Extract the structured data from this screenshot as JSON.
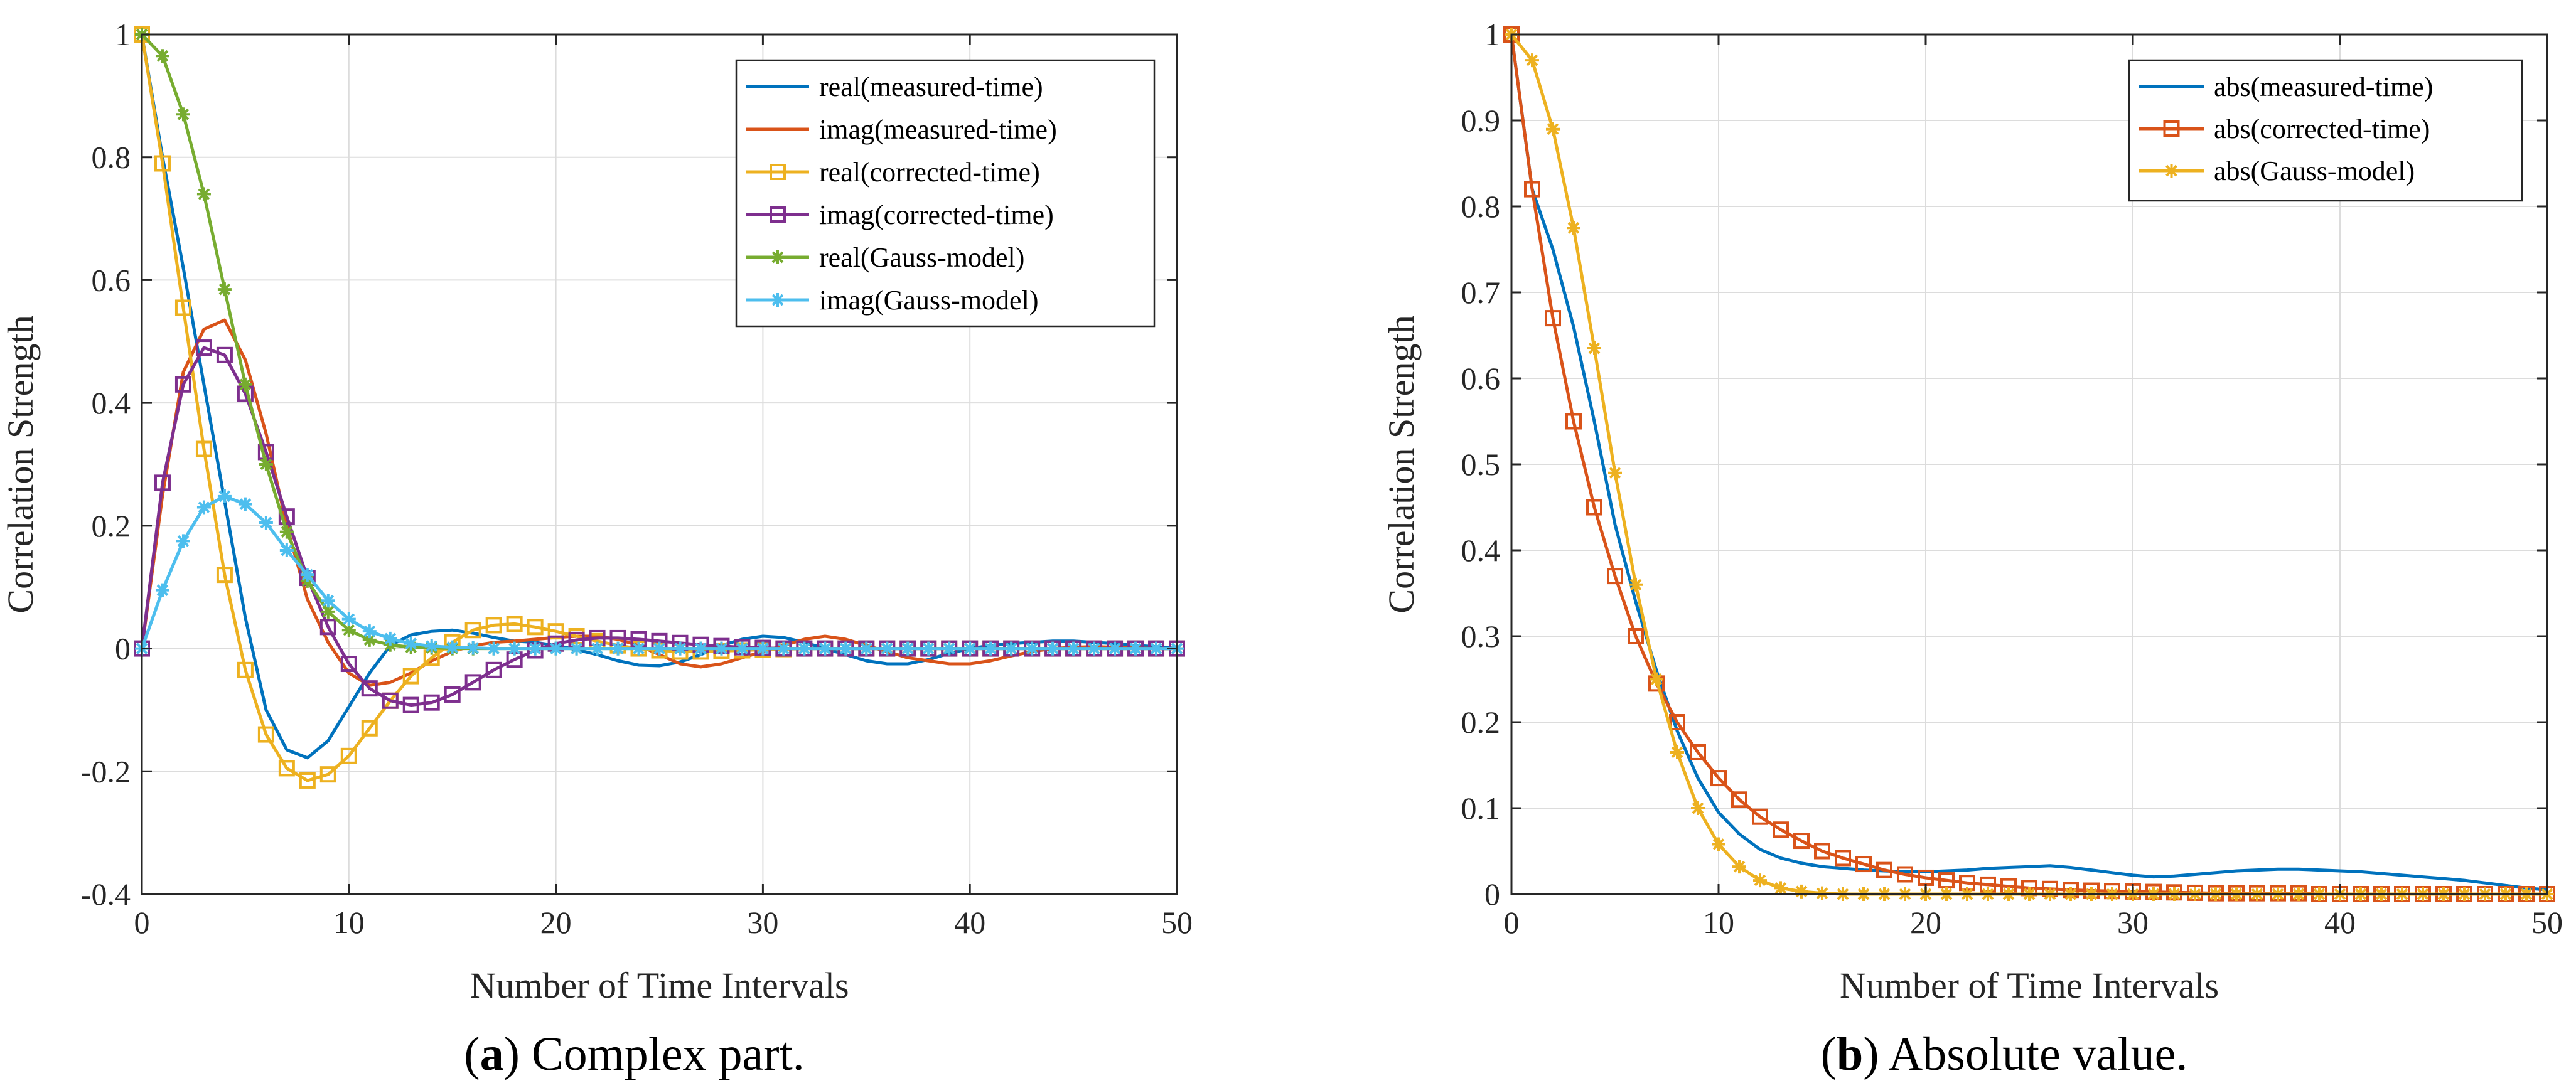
{
  "chart_data": [
    {
      "type": "line",
      "caption": {
        "open": "(",
        "letter": "a",
        "rest": ") Complex part."
      },
      "xlabel": "Number of Time Intervals",
      "ylabel": "Correlation Strength",
      "xlim": [
        0,
        50
      ],
      "ylim": [
        -0.4,
        1
      ],
      "grid": true,
      "legend_position": "top-right",
      "xticks": [
        0,
        10,
        20,
        30,
        40,
        50
      ],
      "yticks": [
        -0.4,
        -0.2,
        0,
        0.2,
        0.4,
        0.6,
        0.8,
        1
      ],
      "ytick_labels": [
        "-0.4",
        "-0.2",
        "0",
        "0.2",
        "0.4",
        "0.6",
        "0.8",
        "1"
      ],
      "series": [
        {
          "name": "real(measured-time)",
          "color": "#0072BD",
          "marker": "none",
          "x": [
            0,
            1,
            2,
            3,
            4,
            5,
            6,
            7,
            8,
            9,
            10,
            11,
            12,
            13,
            14,
            15,
            16,
            17,
            18,
            19,
            20,
            21,
            22,
            23,
            24,
            25,
            26,
            27,
            28,
            29,
            30,
            31,
            32,
            33,
            34,
            35,
            36,
            37,
            38,
            39,
            40,
            41,
            42,
            43,
            44,
            45,
            46,
            47,
            48,
            49,
            50
          ],
          "values": [
            1,
            0.8,
            0.62,
            0.43,
            0.24,
            0.05,
            -0.1,
            -0.165,
            -0.178,
            -0.15,
            -0.095,
            -0.04,
            0.005,
            0.022,
            0.028,
            0.03,
            0.025,
            0.018,
            0.012,
            0.01,
            0.005,
            -0.002,
            -0.01,
            -0.02,
            -0.027,
            -0.028,
            -0.022,
            -0.01,
            0.005,
            0.015,
            0.02,
            0.018,
            0.01,
            0,
            -0.01,
            -0.02,
            -0.025,
            -0.025,
            -0.018,
            -0.008,
            0,
            0.005,
            0.008,
            0.01,
            0.012,
            0.012,
            0.01,
            0.008,
            0.005,
            0.003,
            0
          ]
        },
        {
          "name": "imag(measured-time)",
          "color": "#D95319",
          "marker": "none",
          "x": [
            0,
            1,
            2,
            3,
            4,
            5,
            6,
            7,
            8,
            9,
            10,
            11,
            12,
            13,
            14,
            15,
            16,
            17,
            18,
            19,
            20,
            21,
            22,
            23,
            24,
            25,
            26,
            27,
            28,
            29,
            30,
            31,
            32,
            33,
            34,
            35,
            36,
            37,
            38,
            39,
            40,
            41,
            42,
            43,
            44,
            45,
            46,
            47,
            48,
            49,
            50
          ],
          "values": [
            0,
            0.25,
            0.45,
            0.52,
            0.535,
            0.47,
            0.35,
            0.2,
            0.08,
            0.01,
            -0.04,
            -0.06,
            -0.055,
            -0.04,
            -0.02,
            -0.005,
            0.005,
            0.01,
            0.012,
            0.015,
            0.018,
            0.02,
            0.02,
            0.015,
            0.005,
            -0.01,
            -0.025,
            -0.03,
            -0.025,
            -0.015,
            -0.005,
            0.005,
            0.015,
            0.02,
            0.015,
            0.005,
            -0.005,
            -0.015,
            -0.02,
            -0.025,
            -0.025,
            -0.02,
            -0.012,
            -0.005,
            0,
            0.002,
            0.003,
            0.002,
            0.001,
            0,
            0
          ]
        },
        {
          "name": "real(corrected-time)",
          "color": "#EDB120",
          "marker": "square",
          "x": [
            0,
            1,
            2,
            3,
            4,
            5,
            6,
            7,
            8,
            9,
            10,
            11,
            12,
            13,
            14,
            15,
            16,
            17,
            18,
            19,
            20,
            21,
            22,
            23,
            24,
            25,
            26,
            27,
            28,
            29,
            30,
            31,
            32,
            33,
            34,
            35,
            36,
            37,
            38,
            39,
            40,
            41,
            42,
            43,
            44,
            45,
            46,
            47,
            48,
            49,
            50
          ],
          "values": [
            1,
            0.79,
            0.555,
            0.325,
            0.12,
            -0.035,
            -0.14,
            -0.195,
            -0.215,
            -0.205,
            -0.175,
            -0.13,
            -0.085,
            -0.045,
            -0.015,
            0.01,
            0.03,
            0.038,
            0.04,
            0.035,
            0.028,
            0.02,
            0.012,
            0.005,
            0,
            -0.003,
            -0.005,
            -0.005,
            -0.004,
            -0.003,
            -0.002,
            -0.001,
            0,
            0,
            0,
            0,
            0,
            0,
            0,
            0,
            0,
            0,
            0,
            0,
            0,
            0,
            0,
            0,
            0,
            0,
            0
          ]
        },
        {
          "name": "imag(corrected-time)",
          "color": "#7E2F8E",
          "marker": "square",
          "x": [
            0,
            1,
            2,
            3,
            4,
            5,
            6,
            7,
            8,
            9,
            10,
            11,
            12,
            13,
            14,
            15,
            16,
            17,
            18,
            19,
            20,
            21,
            22,
            23,
            24,
            25,
            26,
            27,
            28,
            29,
            30,
            31,
            32,
            33,
            34,
            35,
            36,
            37,
            38,
            39,
            40,
            41,
            42,
            43,
            44,
            45,
            46,
            47,
            48,
            49,
            50
          ],
          "values": [
            0,
            0.27,
            0.43,
            0.49,
            0.478,
            0.415,
            0.32,
            0.215,
            0.115,
            0.035,
            -0.025,
            -0.065,
            -0.085,
            -0.092,
            -0.088,
            -0.075,
            -0.055,
            -0.035,
            -0.018,
            -0.003,
            0.008,
            0.014,
            0.017,
            0.017,
            0.015,
            0.012,
            0.009,
            0.006,
            0.004,
            0.002,
            0.001,
            0,
            0,
            0,
            0,
            0,
            0,
            0,
            0,
            0,
            0,
            0,
            0,
            0,
            0,
            0,
            0,
            0,
            0,
            0,
            0
          ]
        },
        {
          "name": "real(Gauss-model)",
          "color": "#77AC30",
          "marker": "star",
          "x": [
            0,
            1,
            2,
            3,
            4,
            5,
            6,
            7,
            8,
            9,
            10,
            11,
            12,
            13,
            14,
            15,
            16,
            17,
            18,
            19,
            20,
            21,
            22,
            23,
            24,
            25,
            26,
            27,
            28,
            29,
            30,
            31,
            32,
            33,
            34,
            35,
            36,
            37,
            38,
            39,
            40,
            41,
            42,
            43,
            44,
            45,
            46,
            47,
            48,
            49,
            50
          ],
          "values": [
            1,
            0.965,
            0.87,
            0.74,
            0.585,
            0.43,
            0.3,
            0.19,
            0.11,
            0.06,
            0.03,
            0.014,
            0.006,
            0.002,
            0.001,
            0,
            0,
            0,
            0,
            0,
            0,
            0,
            0,
            0,
            0,
            0,
            0,
            0,
            0,
            0,
            0,
            0,
            0,
            0,
            0,
            0,
            0,
            0,
            0,
            0,
            0,
            0,
            0,
            0,
            0,
            0,
            0,
            0,
            0,
            0,
            0
          ]
        },
        {
          "name": "imag(Gauss-model)",
          "color": "#4DBEEE",
          "marker": "star",
          "x": [
            0,
            1,
            2,
            3,
            4,
            5,
            6,
            7,
            8,
            9,
            10,
            11,
            12,
            13,
            14,
            15,
            16,
            17,
            18,
            19,
            20,
            21,
            22,
            23,
            24,
            25,
            26,
            27,
            28,
            29,
            30,
            31,
            32,
            33,
            34,
            35,
            36,
            37,
            38,
            39,
            40,
            41,
            42,
            43,
            44,
            45,
            46,
            47,
            48,
            49,
            50
          ],
          "values": [
            0,
            0.095,
            0.175,
            0.23,
            0.248,
            0.235,
            0.205,
            0.16,
            0.12,
            0.078,
            0.048,
            0.028,
            0.016,
            0.008,
            0.004,
            0.002,
            0.001,
            0,
            0,
            0,
            0,
            0,
            0,
            0,
            0,
            0,
            0,
            0,
            0,
            0,
            0,
            0,
            0,
            0,
            0,
            0,
            0,
            0,
            0,
            0,
            0,
            0,
            0,
            0,
            0,
            0,
            0,
            0,
            0,
            0,
            0
          ]
        }
      ]
    },
    {
      "type": "line",
      "caption": {
        "open": "(",
        "letter": "b",
        "rest": ") Absolute value."
      },
      "xlabel": "Number of Time Intervals",
      "ylabel": "Correlation Strength",
      "xlim": [
        0,
        50
      ],
      "ylim": [
        0,
        1
      ],
      "grid": true,
      "legend_position": "top-right",
      "xticks": [
        0,
        10,
        20,
        30,
        40,
        50
      ],
      "yticks": [
        0,
        0.1,
        0.2,
        0.3,
        0.4,
        0.5,
        0.6,
        0.7,
        0.8,
        0.9,
        1
      ],
      "ytick_labels": [
        "0",
        "0.1",
        "0.2",
        "0.3",
        "0.4",
        "0.5",
        "0.6",
        "0.7",
        "0.8",
        "0.9",
        "1"
      ],
      "series": [
        {
          "name": "abs(measured-time)",
          "color": "#0072BD",
          "marker": "none",
          "x": [
            0,
            1,
            2,
            3,
            4,
            5,
            6,
            7,
            8,
            9,
            10,
            11,
            12,
            13,
            14,
            15,
            16,
            17,
            18,
            19,
            20,
            21,
            22,
            23,
            24,
            25,
            26,
            27,
            28,
            29,
            30,
            31,
            32,
            33,
            34,
            35,
            36,
            37,
            38,
            39,
            40,
            41,
            42,
            43,
            44,
            45,
            46,
            47,
            48,
            49,
            50
          ],
          "values": [
            1,
            0.82,
            0.75,
            0.66,
            0.55,
            0.43,
            0.34,
            0.26,
            0.19,
            0.135,
            0.095,
            0.07,
            0.052,
            0.042,
            0.036,
            0.032,
            0.03,
            0.028,
            0.027,
            0.026,
            0.026,
            0.027,
            0.028,
            0.03,
            0.031,
            0.032,
            0.033,
            0.031,
            0.028,
            0.025,
            0.022,
            0.02,
            0.021,
            0.023,
            0.025,
            0.027,
            0.028,
            0.029,
            0.029,
            0.028,
            0.027,
            0.026,
            0.024,
            0.022,
            0.02,
            0.018,
            0.016,
            0.013,
            0.01,
            0.007,
            0.005
          ]
        },
        {
          "name": "abs(corrected-time)",
          "color": "#D95319",
          "marker": "square",
          "x": [
            0,
            1,
            2,
            3,
            4,
            5,
            6,
            7,
            8,
            9,
            10,
            11,
            12,
            13,
            14,
            15,
            16,
            17,
            18,
            19,
            20,
            21,
            22,
            23,
            24,
            25,
            26,
            27,
            28,
            29,
            30,
            31,
            32,
            33,
            34,
            35,
            36,
            37,
            38,
            39,
            40,
            41,
            42,
            43,
            44,
            45,
            46,
            47,
            48,
            49,
            50
          ],
          "values": [
            1,
            0.82,
            0.67,
            0.55,
            0.45,
            0.37,
            0.3,
            0.245,
            0.2,
            0.165,
            0.135,
            0.11,
            0.09,
            0.075,
            0.062,
            0.05,
            0.042,
            0.035,
            0.028,
            0.023,
            0.019,
            0.016,
            0.013,
            0.011,
            0.009,
            0.007,
            0.006,
            0.005,
            0.004,
            0.0035,
            0.003,
            0.0025,
            0.002,
            0.0015,
            0.001,
            0.001,
            0.001,
            0.001,
            0.001,
            0,
            0,
            0,
            0,
            0,
            0,
            0,
            0,
            0,
            0,
            0,
            0
          ]
        },
        {
          "name": "abs(Gauss-model)",
          "color": "#EDB120",
          "marker": "star",
          "x": [
            0,
            1,
            2,
            3,
            4,
            5,
            6,
            7,
            8,
            9,
            10,
            11,
            12,
            13,
            14,
            15,
            16,
            17,
            18,
            19,
            20,
            21,
            22,
            23,
            24,
            25,
            26,
            27,
            28,
            29,
            30,
            31,
            32,
            33,
            34,
            35,
            36,
            37,
            38,
            39,
            40,
            41,
            42,
            43,
            44,
            45,
            46,
            47,
            48,
            49,
            50
          ],
          "values": [
            1,
            0.97,
            0.89,
            0.775,
            0.635,
            0.49,
            0.36,
            0.25,
            0.165,
            0.1,
            0.058,
            0.032,
            0.016,
            0.007,
            0.003,
            0.001,
            0,
            0,
            0,
            0,
            0,
            0,
            0,
            0,
            0,
            0,
            0,
            0,
            0,
            0,
            0,
            0,
            0,
            0,
            0,
            0,
            0,
            0,
            0,
            0,
            0,
            0,
            0,
            0,
            0,
            0,
            0,
            0,
            0,
            0,
            0
          ]
        }
      ]
    }
  ]
}
